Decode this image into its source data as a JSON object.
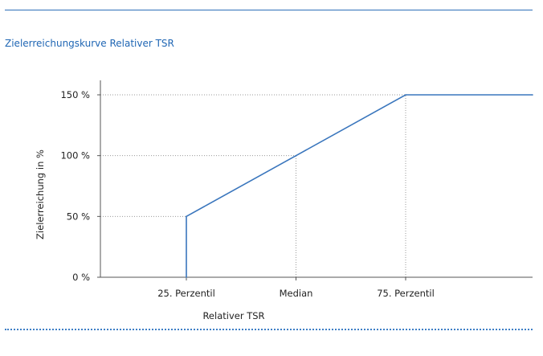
{
  "header": {
    "title": "Zielerreichungskurve Relativer TSR"
  },
  "colors": {
    "accent": "#1f66b4",
    "line": "#3a76bd",
    "grid": "#9a9a9a",
    "axis": "#555555"
  },
  "chart_data": {
    "type": "line",
    "title": "Zielerreichungskurve Relativer TSR",
    "xlabel": "Relativer TSR",
    "ylabel": "Zielerreichung in %",
    "x_tick_labels": [
      "25. Perzentil",
      "Median",
      "75. Perzentil"
    ],
    "x_ticks": [
      25,
      50,
      75
    ],
    "xlim": [
      5,
      105
    ],
    "y_tick_labels": [
      "0 %",
      "50 %",
      "100 %",
      "150 %"
    ],
    "y_ticks": [
      0,
      50,
      100,
      150
    ],
    "ylim": [
      0,
      165
    ],
    "grid": "dotted reference lines at 50 %, 100 %, 150 % and at Median and 75. Perzentil",
    "legend": "none",
    "series": [
      {
        "x": [
          25,
          25,
          50,
          75,
          105
        ],
        "y": [
          0,
          50,
          100,
          150,
          150
        ]
      }
    ]
  }
}
